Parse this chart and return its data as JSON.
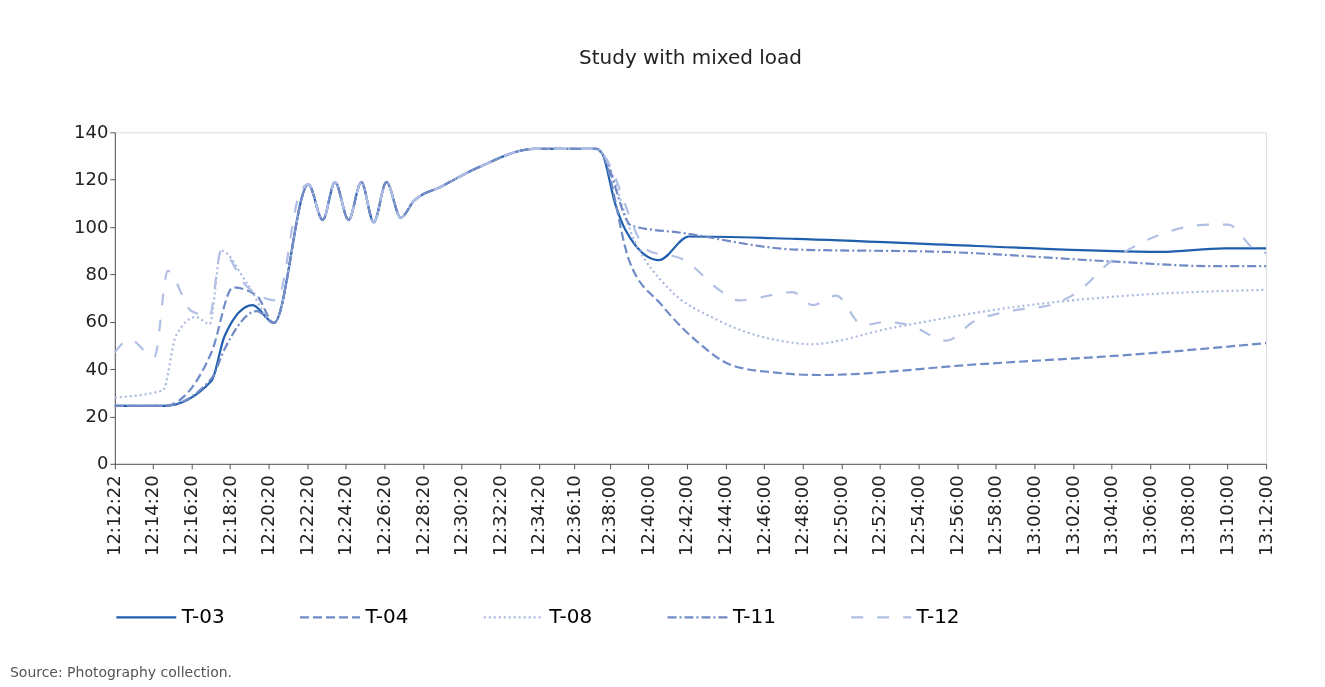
{
  "chart_data": {
    "type": "line",
    "title": "Study with mixed load",
    "xlim": [
      12.20611,
      13.2
    ],
    "xticks": [
      {
        "value": 12.20611,
        "label": "12:12:22"
      },
      {
        "value": 12.23889,
        "label": "12:14:20"
      },
      {
        "value": 12.27222,
        "label": "12:16:20"
      },
      {
        "value": 12.30556,
        "label": "12:18:20"
      },
      {
        "value": 12.33889,
        "label": "12:20:20"
      },
      {
        "value": 12.37222,
        "label": "12:22:20"
      },
      {
        "value": 12.40556,
        "label": "12:24:20"
      },
      {
        "value": 12.43889,
        "label": "12:26:20"
      },
      {
        "value": 12.47222,
        "label": "12:28:20"
      },
      {
        "value": 12.50556,
        "label": "12:30:20"
      },
      {
        "value": 12.53889,
        "label": "12:32:20"
      },
      {
        "value": 12.57222,
        "label": "12:34:20"
      },
      {
        "value": 12.60278,
        "label": "12:36:10"
      },
      {
        "value": 12.63333,
        "label": "12:38:00"
      },
      {
        "value": 12.66667,
        "label": "12:40:00"
      },
      {
        "value": 12.7,
        "label": "12:42:00"
      },
      {
        "value": 12.73333,
        "label": "12:44:00"
      },
      {
        "value": 12.76667,
        "label": "12:46:00"
      },
      {
        "value": 12.8,
        "label": "12:48:00"
      },
      {
        "value": 12.83333,
        "label": "12:50:00"
      },
      {
        "value": 12.86667,
        "label": "12:52:00"
      },
      {
        "value": 12.9,
        "label": "12:54:00"
      },
      {
        "value": 12.93333,
        "label": "12:56:00"
      },
      {
        "value": 12.96667,
        "label": "12:58:00"
      },
      {
        "value": 13,
        "label": "13:00:00"
      },
      {
        "value": 13.03333,
        "label": "13:02:00"
      },
      {
        "value": 13.06667,
        "label": "13:04:00"
      },
      {
        "value": 13.1,
        "label": "13:06:00"
      },
      {
        "value": 13.13333,
        "label": "13:08:00"
      },
      {
        "value": 13.16667,
        "label": "13:10:00"
      },
      {
        "value": 13.2,
        "label": "13:12:00"
      }
    ],
    "ylim": [
      0,
      140
    ],
    "yticks": [
      0,
      20,
      40,
      60,
      80,
      100,
      120,
      140
    ],
    "grid": false,
    "legend": "bottom",
    "series": [
      {
        "name": "T-03",
        "color": "#1f5fad",
        "line_style": "solid",
        "x": [
          12.20611,
          12.2489,
          12.2895,
          12.3009,
          12.3249,
          12.3436,
          12.3732,
          12.3856,
          12.3962,
          12.4079,
          12.4189,
          12.4296,
          12.4406,
          12.4529,
          12.4642,
          12.4876,
          12.5192,
          12.5686,
          12.6217,
          12.6269,
          12.638,
          12.6467,
          12.6757,
          12.7017,
          12.794,
          12.95,
          13.1093,
          13.1643,
          13.2
        ],
        "values": [
          24.5,
          24.5,
          35,
          54,
          67,
          59.5,
          118,
          103,
          119,
          103,
          119,
          102,
          119,
          104,
          111,
          117,
          125,
          133,
          133,
          131,
          110,
          99,
          86,
          96,
          95,
          92,
          89.5,
          91,
          91
        ]
      },
      {
        "name": "T-04",
        "color": "#6f8cc8",
        "line_style": "dashed",
        "x": [
          12.20611,
          12.2489,
          12.2895,
          12.3082,
          12.3286,
          12.3436,
          12.3732,
          12.3856,
          12.3962,
          12.4079,
          12.4189,
          12.4296,
          12.4406,
          12.4529,
          12.4642,
          12.4876,
          12.5192,
          12.5686,
          12.6217,
          12.6269,
          12.6497,
          12.6783,
          12.7103,
          12.7393,
          12.7767,
          12.8143,
          12.95,
          13.095,
          13.2
        ],
        "values": [
          24.5,
          24.5,
          47,
          74.5,
          71,
          59.5,
          118,
          103,
          119,
          103,
          119,
          102,
          119,
          104,
          111,
          117,
          125,
          133,
          133,
          131,
          86.5,
          67,
          51,
          41.5,
          38.5,
          37.5,
          42,
          46.5,
          51
        ]
      },
      {
        "name": "T-08",
        "color": "#a9b9e0",
        "line_style": "dotted",
        "x": [
          12.20611,
          12.2476,
          12.2589,
          12.2762,
          12.2879,
          12.2979,
          12.3199,
          12.3436,
          12.3732,
          12.3856,
          12.3962,
          12.4079,
          12.4189,
          12.4296,
          12.4406,
          12.4529,
          12.4642,
          12.4876,
          12.5192,
          12.5686,
          12.6217,
          12.6269,
          12.6553,
          12.6843,
          12.7253,
          12.794,
          12.8057,
          12.878,
          12.9793,
          13.066,
          13.2
        ],
        "values": [
          28,
          31,
          54,
          62,
          59,
          90,
          76.5,
          59.5,
          118,
          103,
          119,
          103,
          119,
          102,
          119,
          104,
          111,
          117,
          125,
          133,
          133,
          131,
          93.5,
          74,
          61,
          51,
          50.5,
          57.5,
          66,
          70.5,
          73.5
        ]
      },
      {
        "name": "T-11",
        "color": "#7189c4",
        "line_style": "dashdot",
        "x": [
          12.20611,
          12.2489,
          12.2895,
          12.3009,
          12.3286,
          12.3436,
          12.3732,
          12.3856,
          12.3962,
          12.4079,
          12.4189,
          12.4296,
          12.4406,
          12.4529,
          12.4642,
          12.4876,
          12.5192,
          12.5686,
          12.6217,
          12.6269,
          12.6523,
          12.696,
          12.794,
          12.9213,
          13.066,
          13.1527,
          13.2
        ],
        "values": [
          24.5,
          24.5,
          36,
          48.5,
          64.5,
          59.5,
          118,
          103,
          119,
          103,
          119,
          102,
          119,
          104,
          111,
          117,
          125,
          133,
          133,
          131,
          100.5,
          97.5,
          90.5,
          89.5,
          85.5,
          83.5,
          83.5
        ]
      },
      {
        "name": "T-12",
        "color": "#b0bfe3",
        "line_style": "longdash",
        "x": [
          12.20611,
          12.2189,
          12.2402,
          12.2519,
          12.2722,
          12.2879,
          12.2979,
          12.3199,
          12.3459,
          12.3659,
          12.3732,
          12.3856,
          12.3962,
          12.4079,
          12.4189,
          12.4296,
          12.4406,
          12.4529,
          12.4642,
          12.4876,
          12.5192,
          12.5686,
          12.6217,
          12.6269,
          12.6667,
          12.696,
          12.7307,
          12.745,
          12.7913,
          12.8087,
          12.8287,
          12.852,
          12.8723,
          12.8923,
          12.9243,
          12.9473,
          12.9793,
          13.0167,
          13.037,
          13.066,
          13.095,
          13.1527,
          13.1673,
          13.1903,
          13.2
        ],
        "values": [
          47,
          52.5,
          45,
          81.5,
          64.5,
          62.5,
          90,
          75,
          69,
          114.5,
          118,
          103,
          119,
          103,
          119,
          102,
          119,
          104,
          111,
          117,
          125,
          133,
          133,
          131,
          90,
          86.5,
          72.5,
          69,
          72.5,
          67,
          71,
          58.5,
          60,
          58.5,
          52,
          60,
          64.5,
          67.5,
          72.5,
          85.5,
          94,
          101,
          101,
          90.5,
          89
        ]
      }
    ],
    "annotations": [
      "Source: Photography collection."
    ]
  }
}
